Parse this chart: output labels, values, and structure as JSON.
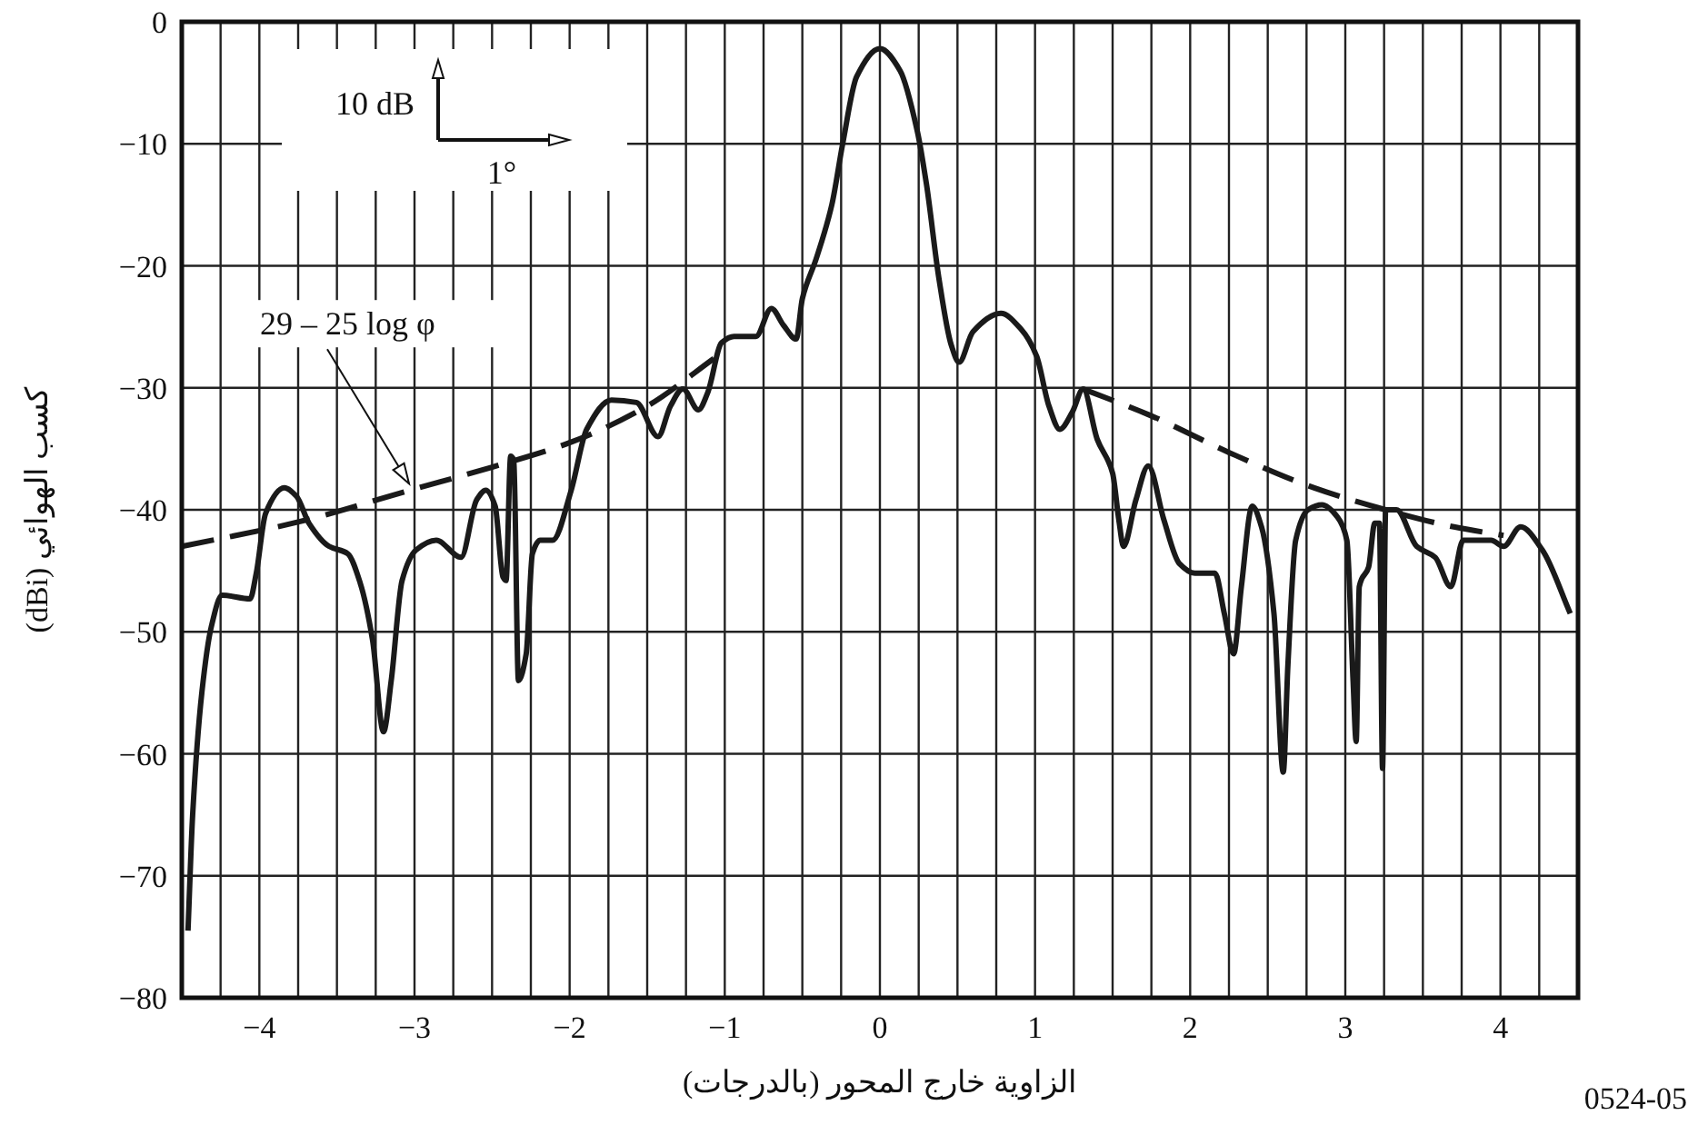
{
  "chart_data": {
    "type": "line",
    "xlabel": "الزاوية خارج المحور (بالدرجات)",
    "ylabel": "كسب الهوائي (dBi)",
    "xlim": [
      -4.5,
      4.5
    ],
    "ylim": [
      -80,
      0
    ],
    "xticks": [
      -4,
      {
        "value": -3.75,
        "label": null
      },
      {
        "value": -3.5,
        "label": null
      },
      {
        "value": -3.25,
        "label": null
      },
      -3,
      {
        "value": -2.75,
        "label": null
      },
      {
        "value": -2.5,
        "label": null
      },
      {
        "value": -2.25,
        "label": null
      },
      -2,
      {
        "value": -1.75,
        "label": null
      },
      {
        "value": -1.5,
        "label": null
      },
      {
        "value": -1.25,
        "label": null
      },
      -1,
      {
        "value": -0.75,
        "label": null
      },
      {
        "value": -0.5,
        "label": null
      },
      {
        "value": -0.25,
        "label": null
      },
      0,
      {
        "value": 0.25,
        "label": null
      },
      {
        "value": 0.5,
        "label": null
      },
      {
        "value": 0.75,
        "label": null
      },
      1,
      {
        "value": 1.25,
        "label": null
      },
      {
        "value": 1.5,
        "label": null
      },
      {
        "value": 1.75,
        "label": null
      },
      2,
      {
        "value": 2.25,
        "label": null
      },
      {
        "value": 2.5,
        "label": null
      },
      {
        "value": 2.75,
        "label": null
      },
      3,
      {
        "value": 3.25,
        "label": null
      },
      {
        "value": 3.5,
        "label": null
      },
      {
        "value": 3.75,
        "label": null
      },
      4,
      {
        "value": 4.25,
        "label": null
      },
      {
        "value": -4.25,
        "label": null
      }
    ],
    "yticks": [
      0,
      -10,
      -20,
      -30,
      -40,
      -50,
      -60,
      -70,
      -80
    ],
    "grid": true,
    "series": [
      {
        "color": "#1a1a1a",
        "line_style": "solid",
        "x": [
          -4.46,
          -4.43,
          -4.37,
          -4.31,
          -4.24,
          -4.06,
          -4.02,
          -3.96,
          -3.84,
          -3.76,
          -3.68,
          -3.55,
          -3.43,
          -3.35,
          -3.27,
          -3.2,
          -3.15,
          -3.08,
          -2.99,
          -2.86,
          -2.7,
          -2.6,
          -2.54,
          -2.48,
          -2.43,
          -2.41,
          -2.38,
          -2.36,
          -2.33,
          -2.28,
          -2.24,
          -2.19,
          -2.11,
          -1.99,
          -1.89,
          -1.73,
          -1.57,
          -1.43,
          -1.35,
          -1.27,
          -1.17,
          -1.11,
          -1.02,
          -0.94,
          -0.8,
          -0.7,
          -0.62,
          -0.54,
          -0.5,
          -0.41,
          -0.31,
          -0.24,
          -0.15,
          0,
          0.13,
          0.24,
          0.3,
          0.38,
          0.46,
          0.51,
          0.6,
          0.78,
          0.91,
          1.01,
          1.09,
          1.16,
          1.24,
          1.31,
          1.4,
          1.5,
          1.54,
          1.57,
          1.65,
          1.73,
          1.83,
          1.93,
          2.03,
          2.16,
          2.22,
          2.28,
          2.33,
          2.4,
          2.46,
          2.54,
          2.6,
          2.63,
          2.68,
          2.76,
          2.85,
          2.95,
          3.01,
          3.05,
          3.07,
          3.09,
          3.15,
          3.19,
          3.22,
          3.24,
          3.26,
          3.33,
          3.46,
          3.58,
          3.68,
          3.76,
          3.94,
          4.02,
          4.13,
          4.27,
          4.45
        ],
        "values": [
          -74.5,
          -65,
          -54.9,
          -49.6,
          -47,
          -47.3,
          -45.2,
          -40.3,
          -38.2,
          -38.9,
          -41.1,
          -43,
          -43.6,
          -46,
          -50.7,
          -58.2,
          -54,
          -45.8,
          -43.3,
          -42.5,
          -43.9,
          -39.2,
          -38.4,
          -39.7,
          -45.5,
          -45.8,
          -35.6,
          -35.9,
          -54,
          -51.8,
          -43.6,
          -42.5,
          -42.5,
          -38.4,
          -33.4,
          -31,
          -31.2,
          -34,
          -31.5,
          -30.1,
          -31.8,
          -30.4,
          -26.3,
          -25.8,
          -25.8,
          -23.5,
          -24.9,
          -26,
          -22.7,
          -19.4,
          -15,
          -10,
          -4.5,
          -2.2,
          -4,
          -8.9,
          -13.3,
          -21,
          -26.5,
          -27.9,
          -25.4,
          -23.9,
          -25.2,
          -27.4,
          -31.5,
          -33.4,
          -32,
          -30.1,
          -34.2,
          -37,
          -40.8,
          -43,
          -39.2,
          -36.4,
          -40.8,
          -44.4,
          -45.2,
          -45.2,
          -48.5,
          -51.8,
          -46.3,
          -39.7,
          -41.4,
          -48.5,
          -61.5,
          -52.7,
          -42.5,
          -40,
          -39.6,
          -40.6,
          -42.5,
          -54,
          -59,
          -46.3,
          -44.7,
          -41.1,
          -41.1,
          -61.2,
          -40,
          -40,
          -43,
          -43.9,
          -46.3,
          -42.5,
          -42.5,
          -43,
          -41.4,
          -43.3,
          -48.5
        ]
      },
      {
        "color": "#1a1a1a",
        "line_style": "dashed",
        "x": [
          -4.5,
          -3.75,
          -3.03,
          -2.5,
          -2,
          -1.5,
          -1.07
        ],
        "values": [
          -43,
          -41,
          -38.4,
          -36.5,
          -34.5,
          -31.5,
          -27.6
        ]
      },
      {
        "color": "#1a1a1a",
        "line_style": "dashed",
        "x": [
          1.31,
          1.75,
          2.25,
          2.8,
          3.26,
          3.7,
          4.02
        ],
        "values": [
          -30.1,
          -32.3,
          -35.3,
          -38.2,
          -40,
          -41.4,
          -42.1
        ]
      }
    ],
    "annotations": [
      "10 dB",
      "1°",
      "0524-05",
      {
        "text": "29 – 25 log φ",
        "x": -3.0,
        "y": -38.6
      }
    ]
  }
}
